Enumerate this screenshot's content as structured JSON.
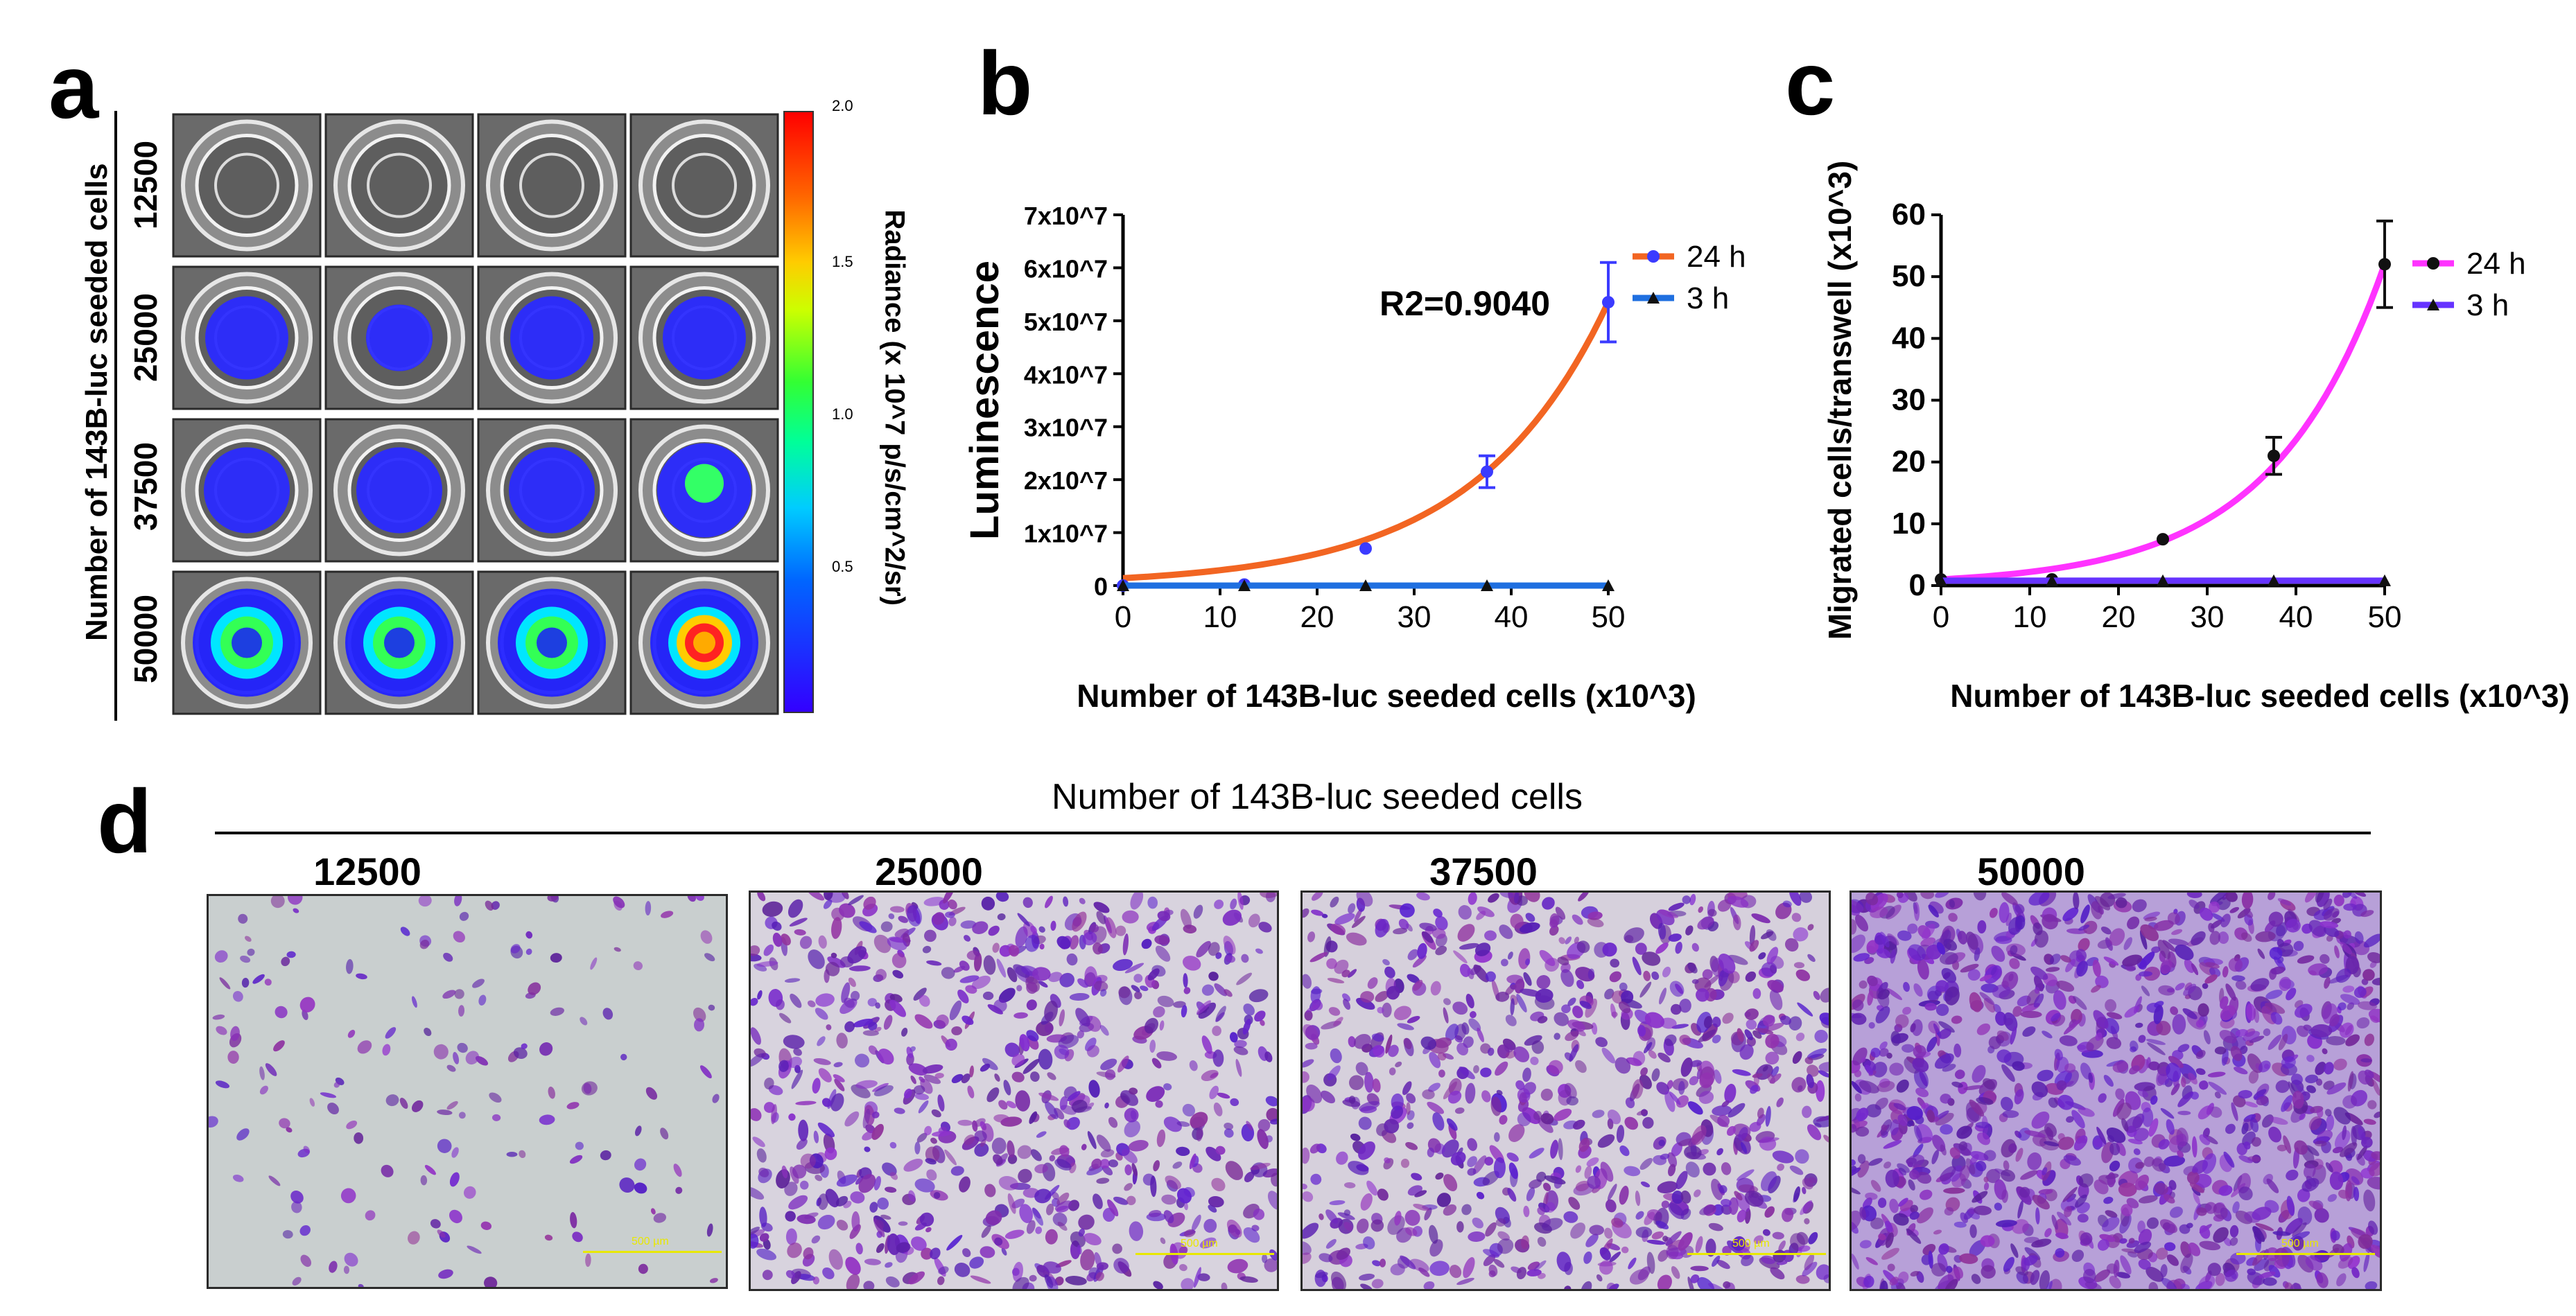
{
  "panels": {
    "a": "a",
    "b": "b",
    "c": "c",
    "d": "d"
  },
  "panel_a": {
    "row_axis_label": "Number of 143B-luc seeded cells",
    "rows": [
      "12500",
      "25000",
      "37500",
      "50000"
    ],
    "colorbar_label": "Radiance (x 10^7 p/s/cm^2/sr)",
    "colorbar_ticks": [
      "2.0",
      "1.5",
      "1.0",
      "0.5"
    ]
  },
  "panel_d": {
    "title": "Number of 143B-luc seeded cells",
    "images": [
      {
        "label": "12500",
        "scale_bar": "500 µm",
        "density": 0.12
      },
      {
        "label": "25000",
        "scale_bar": "500 µm",
        "density": 0.55
      },
      {
        "label": "37500",
        "scale_bar": "500 µm",
        "density": 0.62
      },
      {
        "label": "50000",
        "scale_bar": "500 µm",
        "density": 0.9
      }
    ]
  },
  "colors": {
    "orange": "#f26522",
    "blue": "#1f6fe0",
    "magenta": "#ff33ff",
    "purple": "#6633ff"
  },
  "chart_data": [
    {
      "type": "line",
      "panel": "b",
      "ylabel": "Luminescence",
      "xlabel": "Number of 143B-luc seeded cells (x10^3)",
      "xlim": [
        0,
        50
      ],
      "ylim": [
        0,
        70000000
      ],
      "x_ticks": [
        "0",
        "10",
        "20",
        "30",
        "40",
        "50"
      ],
      "y_ticks": [
        "0",
        "1x10^7",
        "2x10^7",
        "3x10^7",
        "4x10^7",
        "5x10^7",
        "6x10^7",
        "7x10^7"
      ],
      "annotation": "R2=0.9040",
      "series": [
        {
          "name": "24 h",
          "color": "#f26522",
          "x": [
            0,
            12.5,
            25,
            37.5,
            50
          ],
          "values": [
            0,
            200000,
            7000000,
            21500000,
            53500000
          ],
          "error": [
            0,
            0,
            0,
            3000000,
            7500000
          ]
        },
        {
          "name": "3 h",
          "color": "#1f6fe0",
          "x": [
            0,
            12.5,
            25,
            37.5,
            50
          ],
          "values": [
            0,
            0,
            0,
            0,
            0
          ],
          "error": [
            0,
            0,
            0,
            0,
            0
          ]
        }
      ]
    },
    {
      "type": "line",
      "panel": "c",
      "ylabel": "Migrated cells/transwell (x10^3)",
      "xlabel": "Number of 143B-luc seeded cells (x10^3)",
      "xlim": [
        0,
        50
      ],
      "ylim": [
        0,
        60
      ],
      "x_ticks": [
        "0",
        "10",
        "20",
        "30",
        "40",
        "50"
      ],
      "y_ticks": [
        "0",
        "10",
        "20",
        "30",
        "40",
        "50",
        "60"
      ],
      "series": [
        {
          "name": "24 h",
          "color": "#ff33ff",
          "x": [
            0,
            12.5,
            25,
            37.5,
            50
          ],
          "values": [
            1,
            1,
            7.5,
            21,
            52
          ],
          "error": [
            0,
            0,
            0,
            3,
            7
          ]
        },
        {
          "name": "3 h",
          "color": "#6633ff",
          "x": [
            0,
            12.5,
            25,
            37.5,
            50
          ],
          "values": [
            0.8,
            0.8,
            0.8,
            0.8,
            0.8
          ],
          "error": [
            0,
            0,
            0,
            0,
            0
          ]
        }
      ]
    }
  ]
}
